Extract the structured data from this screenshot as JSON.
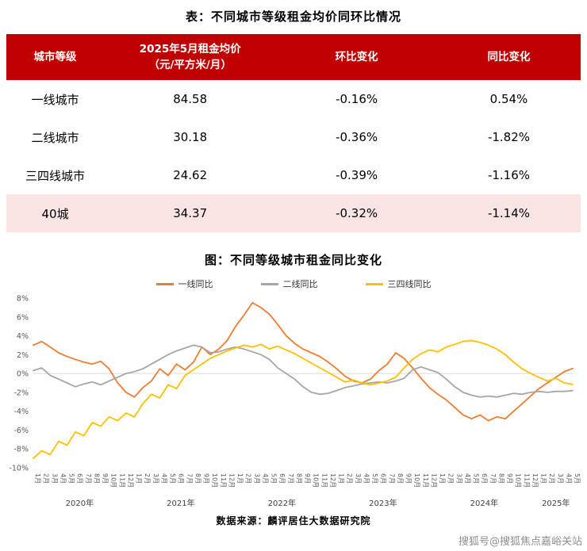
{
  "table_section": {
    "title": "表：不同城市等级租金均价同环比情况",
    "columns": [
      "城市等级",
      "2025年5月租金均价\n（元/平方米/月）",
      "环比变化",
      "同比变化"
    ],
    "rows": [
      {
        "tier": "一线城市",
        "price": "84.58",
        "mom": "-0.16%",
        "yoy": "0.54%",
        "highlight": false
      },
      {
        "tier": "二线城市",
        "price": "30.18",
        "mom": "-0.36%",
        "yoy": "-1.82%",
        "highlight": false
      },
      {
        "tier": "三四线城市",
        "price": "24.62",
        "mom": "-0.39%",
        "yoy": "-1.16%",
        "highlight": false
      },
      {
        "tier": "40城",
        "price": "34.37",
        "mom": "-0.32%",
        "yoy": "-1.14%",
        "highlight": true
      }
    ]
  },
  "chart_section": {
    "title": "图：不同等级城市租金同比变化"
  },
  "chart_data": {
    "type": "line",
    "title": "图：不同等级城市租金同比变化",
    "ylim": [
      -10,
      8
    ],
    "ytick_step": 2,
    "grid": "zero-line-only",
    "legend_position": "top-center",
    "x": [
      "1月",
      "2月",
      "3月",
      "4月",
      "5月",
      "6月",
      "7月",
      "8月",
      "9月",
      "10月",
      "11月",
      "12月",
      "1月",
      "2月",
      "3月",
      "4月",
      "5月",
      "6月",
      "7月",
      "8月",
      "9月",
      "10月",
      "11月",
      "12月",
      "1月",
      "2月",
      "3月",
      "4月",
      "5月",
      "6月",
      "7月",
      "8月",
      "9月",
      "10月",
      "11月",
      "12月",
      "1月",
      "2月",
      "3月",
      "4月",
      "5月",
      "6月",
      "7月",
      "8月",
      "9月",
      "10月",
      "11月",
      "12月",
      "1月",
      "2月",
      "3月",
      "4月",
      "5月",
      "6月",
      "7月",
      "8月",
      "9月",
      "10月",
      "11月",
      "12月",
      "1月",
      "2月",
      "3月",
      "4月",
      "5月"
    ],
    "years": [
      {
        "label": "2020年",
        "start": 0,
        "end": 11
      },
      {
        "label": "2021年",
        "start": 12,
        "end": 23
      },
      {
        "label": "2022年",
        "start": 24,
        "end": 35
      },
      {
        "label": "2023年",
        "start": 36,
        "end": 47
      },
      {
        "label": "2024年",
        "start": 48,
        "end": 59
      },
      {
        "label": "2025年",
        "start": 60,
        "end": 64
      }
    ],
    "series": [
      {
        "name": "一线同比",
        "color": "#ED7D31",
        "values": [
          3.0,
          3.4,
          2.8,
          2.2,
          1.8,
          1.5,
          1.2,
          1.0,
          1.3,
          0.5,
          -1.0,
          -2.0,
          -2.5,
          -1.5,
          -0.8,
          0.5,
          -0.2,
          1.0,
          0.4,
          1.2,
          2.8,
          2.0,
          2.6,
          3.5,
          5.0,
          6.2,
          7.5,
          7.0,
          6.3,
          5.2,
          4.0,
          3.2,
          2.6,
          2.2,
          1.8,
          1.2,
          0.5,
          -0.3,
          -0.8,
          -1.0,
          -0.6,
          0.3,
          1.0,
          2.2,
          1.6,
          0.6,
          -0.5,
          -1.5,
          -2.2,
          -2.8,
          -3.6,
          -4.4,
          -4.8,
          -4.4,
          -5.0,
          -4.6,
          -4.8,
          -4.0,
          -3.2,
          -2.4,
          -1.6,
          -1.0,
          -0.4,
          0.2,
          0.54
        ]
      },
      {
        "name": "二线同比",
        "color": "#A6A6A6",
        "values": [
          0.3,
          0.6,
          -0.2,
          -0.6,
          -1.0,
          -1.4,
          -1.1,
          -0.9,
          -1.2,
          -0.8,
          -0.4,
          0.0,
          0.2,
          0.5,
          1.0,
          1.5,
          2.0,
          2.4,
          2.7,
          3.0,
          2.8,
          2.2,
          2.3,
          2.6,
          2.8,
          2.6,
          2.3,
          2.0,
          1.5,
          0.6,
          0.0,
          -0.6,
          -1.4,
          -2.0,
          -2.2,
          -2.1,
          -1.8,
          -1.5,
          -1.3,
          -1.1,
          -1.0,
          -0.9,
          -1.0,
          -0.8,
          -0.5,
          0.4,
          0.7,
          0.4,
          0.1,
          -0.6,
          -1.4,
          -2.0,
          -2.3,
          -2.5,
          -2.4,
          -2.5,
          -2.3,
          -2.1,
          -2.2,
          -2.0,
          -1.9,
          -2.0,
          -1.9,
          -1.9,
          -1.82
        ]
      },
      {
        "name": "三四线同比",
        "color": "#FFC000",
        "values": [
          -9.0,
          -8.2,
          -8.6,
          -7.2,
          -7.6,
          -6.2,
          -6.6,
          -5.2,
          -5.6,
          -4.6,
          -5.0,
          -4.2,
          -4.6,
          -3.2,
          -2.2,
          -2.6,
          -1.2,
          -1.6,
          -0.2,
          0.4,
          1.0,
          1.6,
          2.0,
          2.4,
          2.7,
          3.0,
          2.8,
          3.1,
          2.6,
          2.9,
          2.5,
          2.1,
          1.6,
          1.1,
          0.6,
          0.1,
          -0.4,
          -0.9,
          -0.7,
          -1.0,
          -1.2,
          -1.0,
          -0.8,
          -0.4,
          0.6,
          1.5,
          2.1,
          2.5,
          2.3,
          2.8,
          3.1,
          3.4,
          3.5,
          3.3,
          3.0,
          2.6,
          2.0,
          1.2,
          0.5,
          0.0,
          -0.4,
          -0.8,
          -0.5,
          -1.0,
          -1.16
        ]
      }
    ]
  },
  "footer": {
    "source": "数据来源：麟评居住大数据研究院",
    "watermark": "搜狐号@搜狐焦点嘉峪关站"
  },
  "colors": {
    "header_bg": "#C00000",
    "highlight_row_bg": "#FBE5E4",
    "zero_line": "#D9D9D9",
    "axis_text": "#595959"
  }
}
